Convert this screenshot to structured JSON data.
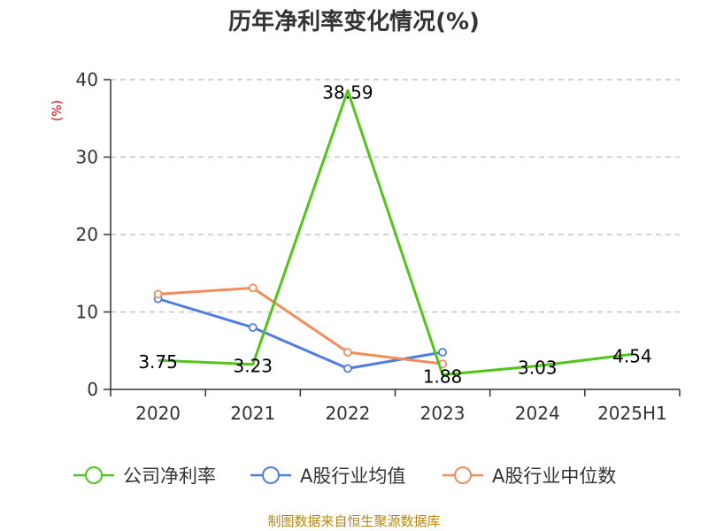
{
  "colors": {
    "company": "#52c41a",
    "industry_avg": "#4f7ddf",
    "industry_median": "#f28c5b",
    "grid": "#bbbbbb",
    "axis": "#333333",
    "unit": "#cc0000",
    "source": "#b8860b"
  },
  "chart_data": {
    "type": "line",
    "title": "历年净利率变化情况(%)",
    "ylabel": "(%)",
    "categories": [
      "2020",
      "2021",
      "2022",
      "2023",
      "2024",
      "2025H1"
    ],
    "ylim": [
      0,
      40
    ],
    "yticks": [
      "0",
      "10",
      "20",
      "30",
      "40"
    ],
    "grid": true,
    "legend_position": "bottom",
    "series": [
      {
        "name": "公司净利率",
        "values": [
          3.75,
          3.23,
          38.59,
          1.88,
          3.03,
          4.54
        ],
        "labels": [
          "3.75",
          "3.23",
          "38.59",
          "1.88",
          "3.03",
          "4.54"
        ]
      },
      {
        "name": "A股行业均值",
        "values": [
          11.7,
          8.0,
          2.7,
          4.8,
          null,
          null
        ]
      },
      {
        "name": "A股行业中位数",
        "values": [
          12.3,
          13.1,
          4.8,
          3.3,
          null,
          null
        ]
      }
    ]
  },
  "source_text": "制图数据来自恒生聚源数据库"
}
